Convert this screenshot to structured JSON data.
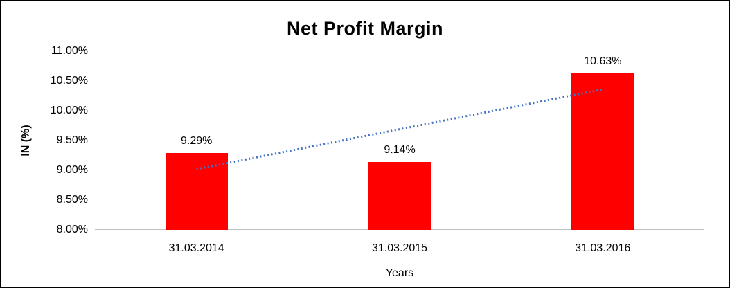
{
  "chart_data": {
    "type": "bar",
    "title": "Net Profit Margin",
    "categories": [
      "31.03.2014",
      "31.03.2015",
      "31.03.2016"
    ],
    "values": [
      9.29,
      9.14,
      10.63
    ],
    "data_labels": [
      "9.29%",
      "9.14%",
      "10.63%"
    ],
    "xlabel": "Years",
    "ylabel": "IN (%)",
    "ylim": [
      8,
      11
    ],
    "ytick_labels": [
      "11.00%",
      "10.50%",
      "10.00%",
      "9.50%",
      "9.00%",
      "8.50%",
      "8.00%"
    ],
    "bar_color": "#FF0000",
    "trendline": {
      "type": "linear",
      "style": "dotted",
      "color": "#4472C4",
      "start_value": 9.02,
      "end_value": 10.36
    },
    "grid": false,
    "legend": false,
    "background": "#FFFFFF"
  }
}
